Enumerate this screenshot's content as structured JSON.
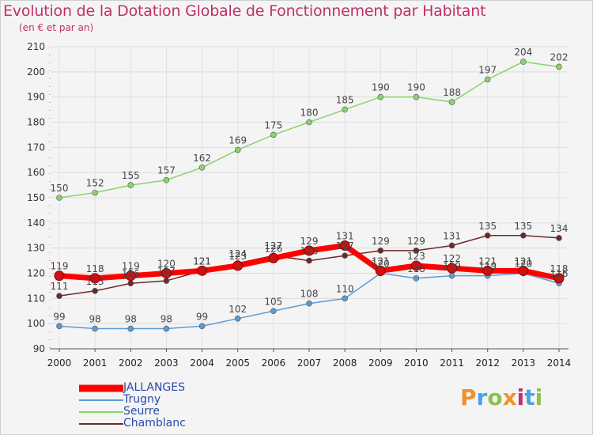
{
  "header": {
    "title": "Evolution de la Dotation Globale de Fonctionnement par Habitant",
    "subtitle": "(en € et par an)"
  },
  "brand": {
    "text": "Proxiti",
    "letters": [
      "P",
      "r",
      "o",
      "x",
      "i",
      "t",
      "i"
    ]
  },
  "chart_data": {
    "type": "line",
    "title": "Evolution de la Dotation Globale de Fonctionnement par Habitant",
    "subtitle": "(en € et par an)",
    "xlabel": "",
    "ylabel": "",
    "x": [
      "2000",
      "2001",
      "2002",
      "2003",
      "2004",
      "2005",
      "2006",
      "2007",
      "2008",
      "2009",
      "2010",
      "2011",
      "2012",
      "2013",
      "2014"
    ],
    "ylim": [
      90,
      210
    ],
    "yticks": [
      90,
      100,
      110,
      120,
      130,
      140,
      150,
      160,
      170,
      180,
      190,
      200,
      210
    ],
    "grid": true,
    "legend_position": "bottom-left",
    "series": [
      {
        "name": "JALLANGES",
        "color": "#ff0000",
        "values": [
          119,
          118,
          119,
          120,
          121,
          123,
          126,
          129,
          131,
          121,
          123,
          122,
          121,
          121,
          118
        ]
      },
      {
        "name": "Trugny",
        "color": "#5b9bd5",
        "values": [
          99,
          98,
          98,
          98,
          99,
          102,
          105,
          108,
          110,
          120,
          118,
          119,
          119,
          120,
          116
        ]
      },
      {
        "name": "Seurre",
        "color": "#8bd36a",
        "values": [
          150,
          152,
          155,
          157,
          162,
          169,
          175,
          180,
          185,
          190,
          190,
          188,
          197,
          204,
          202
        ]
      },
      {
        "name": "Chamblanc",
        "color": "#6b2a2a",
        "values": [
          111,
          113,
          116,
          117,
          121,
          124,
          127,
          125,
          127,
          129,
          129,
          131,
          135,
          135,
          134
        ]
      }
    ]
  }
}
